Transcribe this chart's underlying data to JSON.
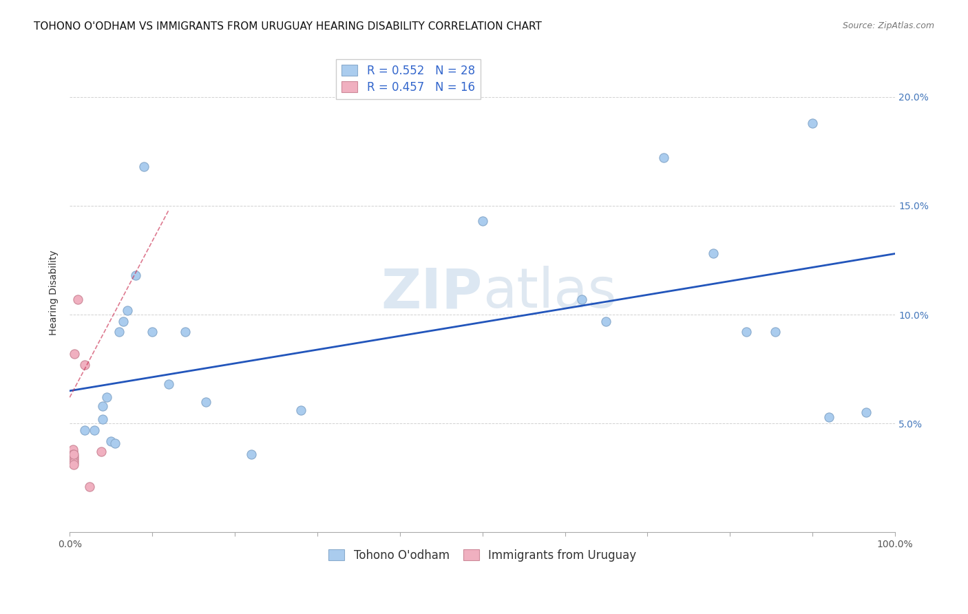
{
  "title": "TOHONO O'ODHAM VS IMMIGRANTS FROM URUGUAY HEARING DISABILITY CORRELATION CHART",
  "source": "Source: ZipAtlas.com",
  "ylabel": "Hearing Disability",
  "xlim": [
    0,
    1.0
  ],
  "ylim": [
    0,
    0.22
  ],
  "xticks": [
    0.0,
    0.1,
    0.2,
    0.3,
    0.4,
    0.5,
    0.6,
    0.7,
    0.8,
    0.9,
    1.0
  ],
  "xticklabels_show": [
    "0.0%",
    "",
    "",
    "",
    "",
    "",
    "",
    "",
    "",
    "",
    "100.0%"
  ],
  "yticks": [
    0.0,
    0.05,
    0.1,
    0.15,
    0.2
  ],
  "yticklabels_right": [
    "",
    "5.0%",
    "10.0%",
    "15.0%",
    "20.0%"
  ],
  "legend_r1": "R = 0.552",
  "legend_n1": "N = 28",
  "legend_r2": "R = 0.457",
  "legend_n2": "N = 16",
  "blue_scatter_x": [
    0.018,
    0.03,
    0.04,
    0.04,
    0.045,
    0.05,
    0.055,
    0.06,
    0.065,
    0.07,
    0.08,
    0.09,
    0.1,
    0.12,
    0.14,
    0.165,
    0.22,
    0.28,
    0.5,
    0.62,
    0.65,
    0.72,
    0.78,
    0.82,
    0.855,
    0.9,
    0.92,
    0.965
  ],
  "blue_scatter_y": [
    0.047,
    0.047,
    0.058,
    0.052,
    0.062,
    0.042,
    0.041,
    0.092,
    0.097,
    0.102,
    0.118,
    0.168,
    0.092,
    0.068,
    0.092,
    0.06,
    0.036,
    0.056,
    0.143,
    0.107,
    0.097,
    0.172,
    0.128,
    0.092,
    0.092,
    0.188,
    0.053,
    0.055
  ],
  "pink_scatter_x": [
    0.004,
    0.004,
    0.004,
    0.004,
    0.004,
    0.005,
    0.005,
    0.005,
    0.005,
    0.005,
    0.005,
    0.006,
    0.01,
    0.018,
    0.024,
    0.038
  ],
  "pink_scatter_y": [
    0.036,
    0.037,
    0.038,
    0.036,
    0.035,
    0.035,
    0.034,
    0.033,
    0.032,
    0.031,
    0.036,
    0.082,
    0.107,
    0.077,
    0.021,
    0.037
  ],
  "blue_line_x": [
    0.0,
    1.0
  ],
  "blue_line_y": [
    0.065,
    0.128
  ],
  "pink_line_x": [
    0.0,
    0.12
  ],
  "pink_line_y": [
    0.062,
    0.148
  ],
  "watermark_zip": "ZIP",
  "watermark_atlas": "atlas",
  "scatter_size": 90,
  "blue_scatter_color": "#aaccee",
  "blue_scatter_edge": "#88aacc",
  "pink_scatter_color": "#f0b0c0",
  "pink_scatter_edge": "#cc8898",
  "blue_line_color": "#2255bb",
  "pink_line_color": "#cc3355",
  "background_color": "#ffffff",
  "grid_color": "#cccccc",
  "title_fontsize": 11,
  "axis_label_fontsize": 10,
  "tick_fontsize": 10,
  "legend_fontsize": 12,
  "tick_color_right": "#4477bb",
  "tick_color_bottom": "#555555"
}
